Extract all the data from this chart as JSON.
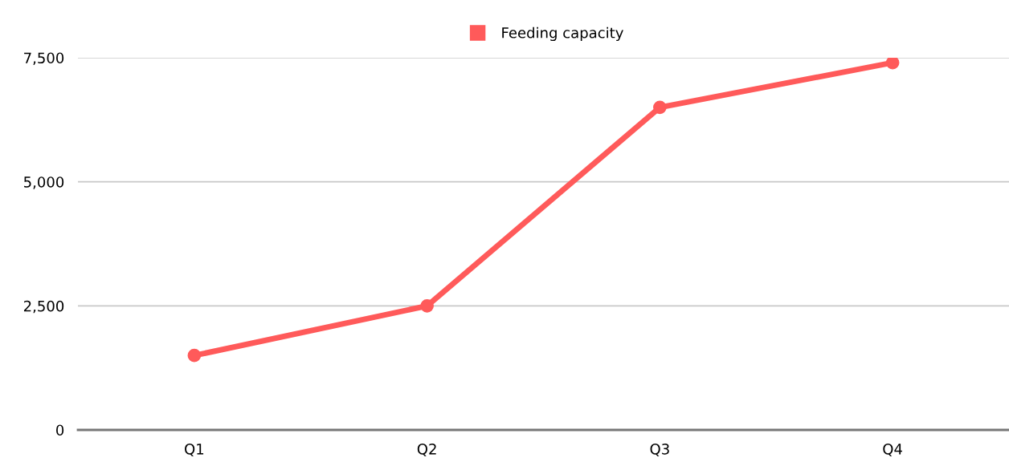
{
  "chart_data": {
    "type": "line",
    "categories": [
      "Q1",
      "Q2",
      "Q3",
      "Q4"
    ],
    "series": [
      {
        "name": "Feeding capacity",
        "color": "#ff5a5a",
        "values": [
          1500,
          2500,
          6500,
          7400
        ]
      }
    ],
    "ylim": [
      0,
      7500
    ],
    "yticks": [
      0,
      {
        "value": 2500,
        "label": "2,500"
      },
      {
        "value": 5000,
        "label": "5,000"
      },
      {
        "value": 7500,
        "label": "7,500"
      }
    ],
    "grid": "y",
    "legend": "top",
    "marker": "circle",
    "line_style": "solid"
  }
}
